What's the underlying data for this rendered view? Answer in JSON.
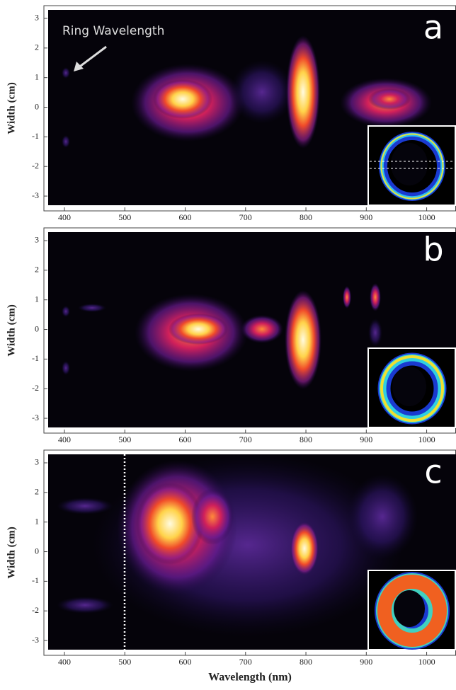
{
  "chart_data": [
    {
      "type": "heatmap",
      "panel_label": "a",
      "annotation": "Ring Wavelength",
      "y_label": "Width (cm)",
      "xlim": [
        366,
        1048
      ],
      "ylim": [
        -3.5,
        3.43
      ],
      "xticks": [
        400,
        500,
        600,
        700,
        800,
        900,
        1000
      ],
      "yticks": [
        -3,
        -2,
        -1,
        0,
        1,
        2,
        3
      ]
    },
    {
      "type": "heatmap",
      "panel_label": "b",
      "y_label": "Width (cm)",
      "xlim": [
        366,
        1048
      ],
      "ylim": [
        -3.5,
        3.43
      ],
      "xticks": [
        400,
        500,
        600,
        700,
        800,
        900,
        1000
      ],
      "yticks": [
        -3,
        -2,
        -1,
        0,
        1,
        2,
        3
      ]
    },
    {
      "type": "heatmap",
      "panel_label": "c",
      "y_label": "Width (cm)",
      "x_label": "Wavelength (nm)",
      "xlim": [
        366,
        1048
      ],
      "ylim": [
        -3.5,
        3.43
      ],
      "xticks": [
        400,
        500,
        600,
        700,
        800,
        900,
        1000
      ],
      "yticks": [
        -3,
        -2,
        -1,
        0,
        1,
        2,
        3
      ]
    }
  ]
}
